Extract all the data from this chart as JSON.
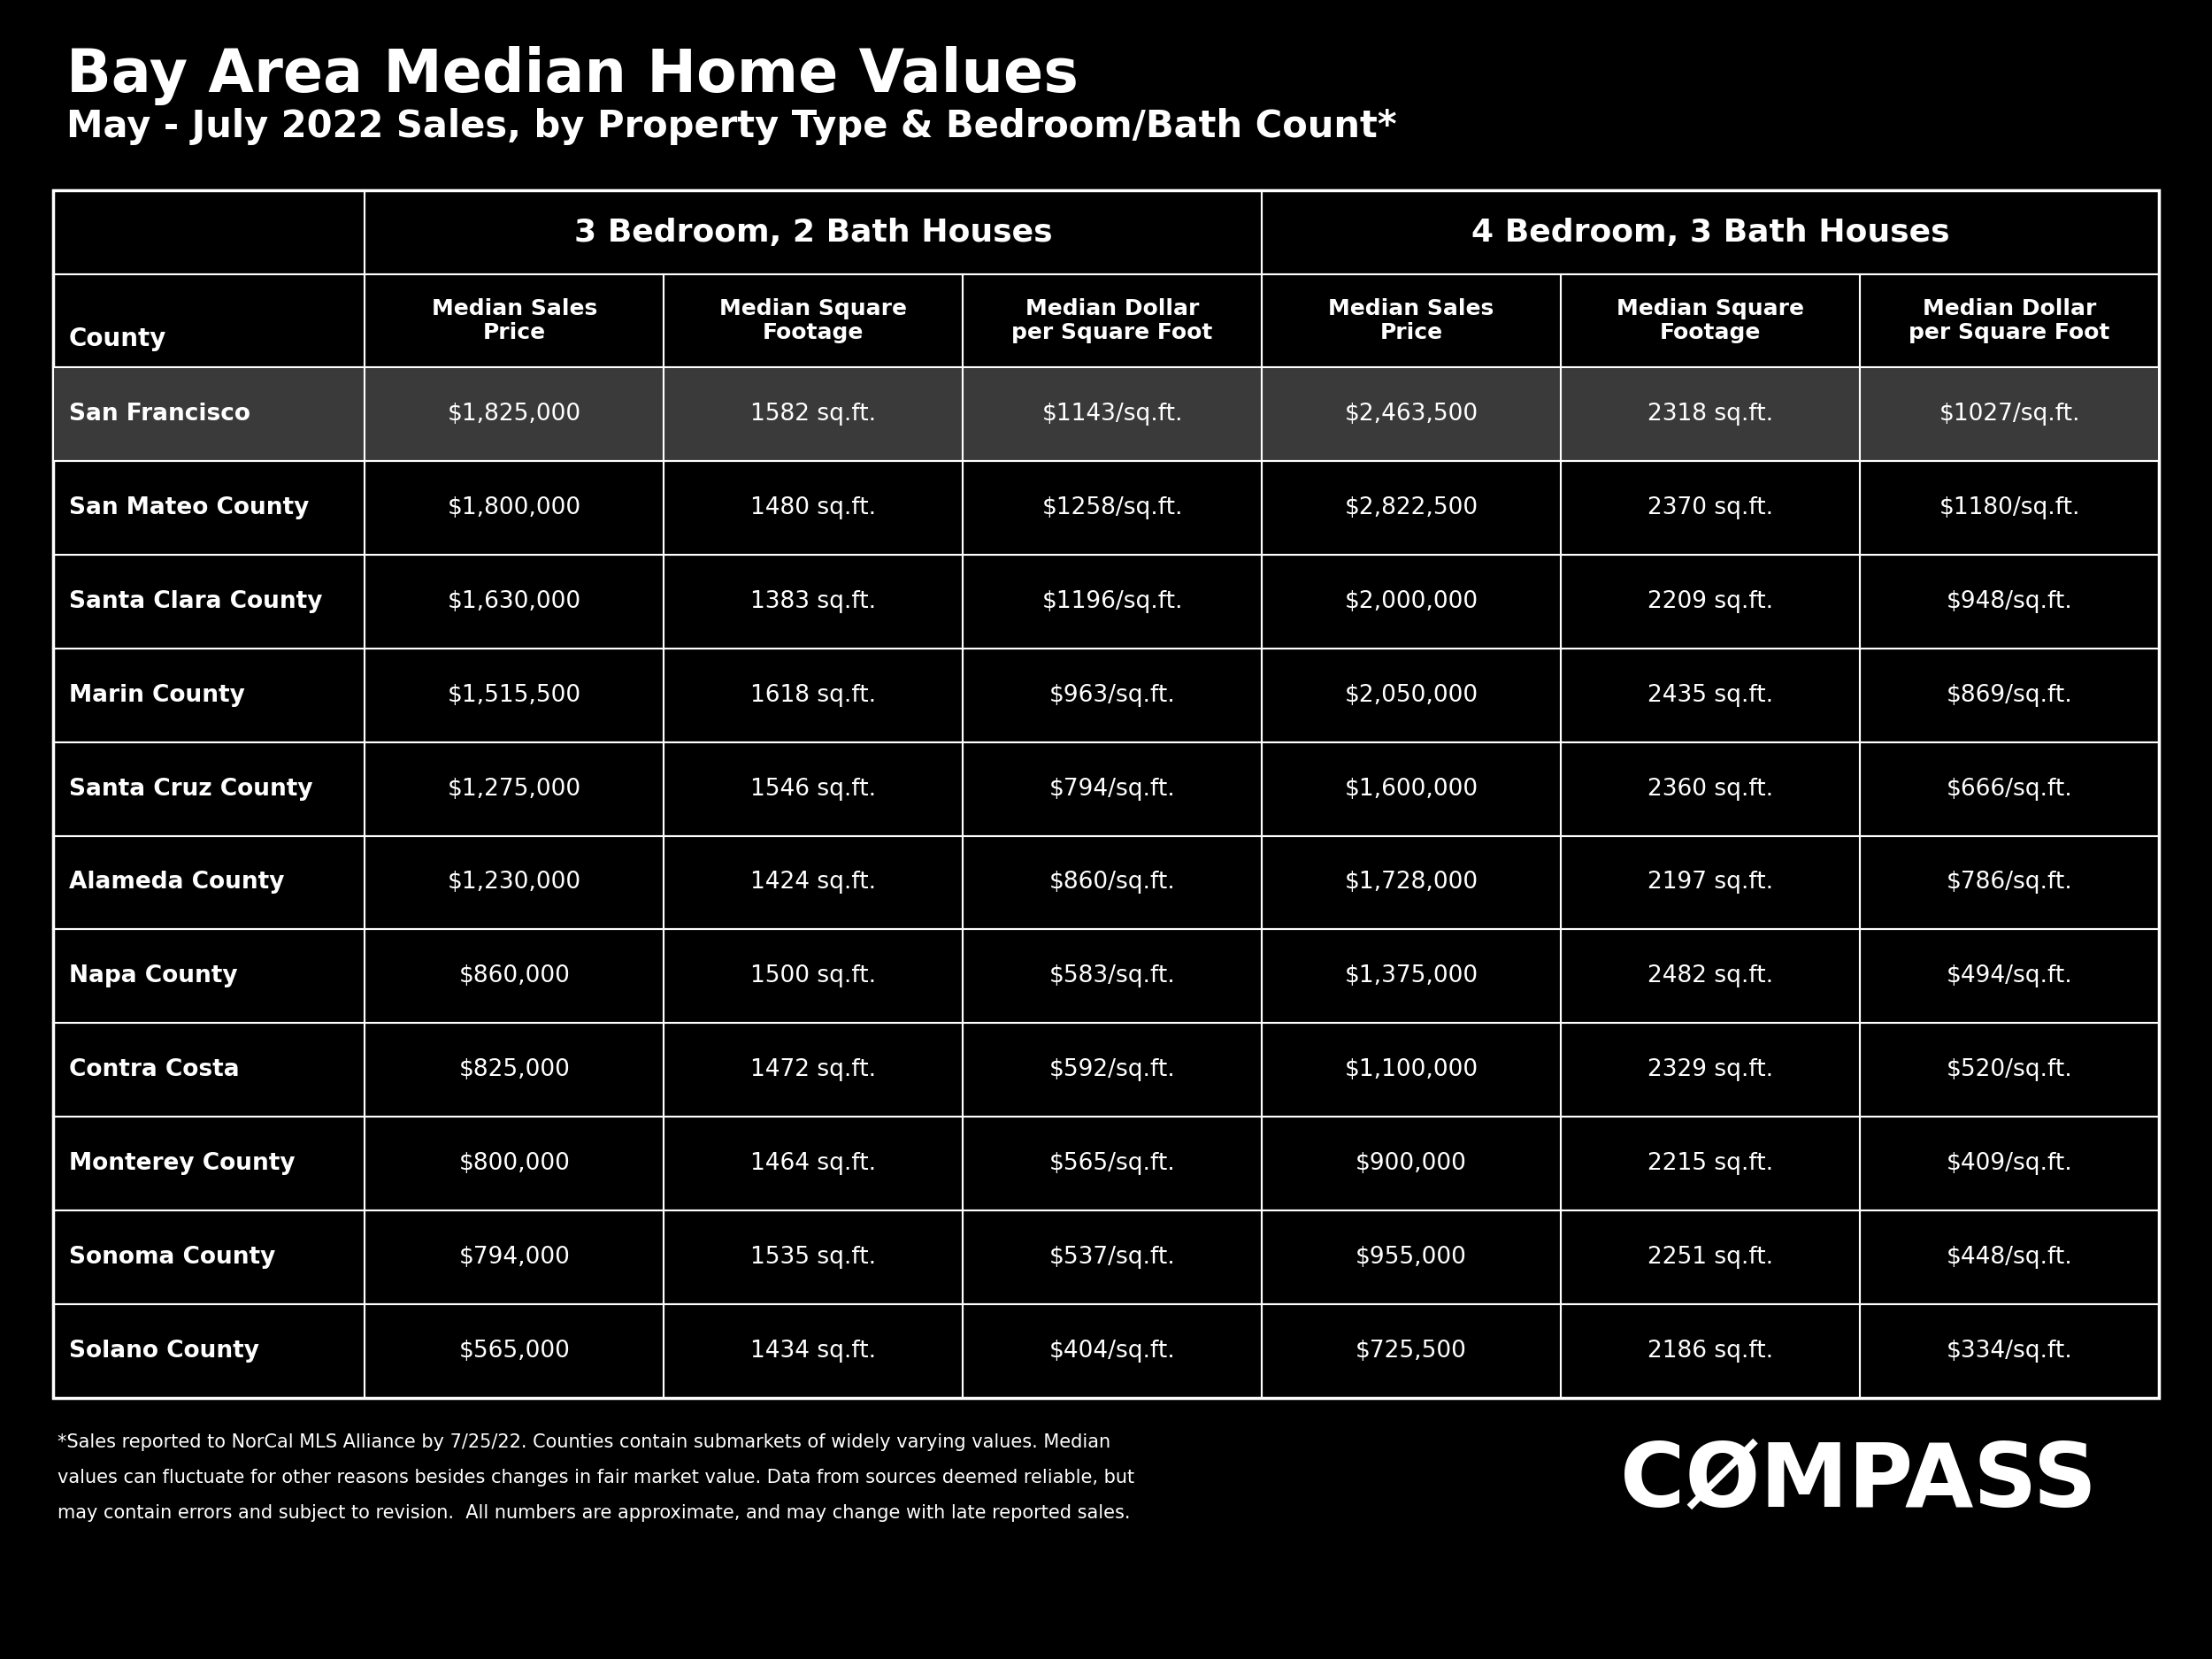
{
  "title_line1": "Bay Area Median Home Values",
  "title_line2": "May - July 2022 Sales, by Property Type & Bedroom/Bath Count*",
  "background_color": "#000000",
  "text_color": "#ffffff",
  "header1_3bed": "3 Bedroom, 2 Bath Houses",
  "header1_4bed": "4 Bedroom, 3 Bath Houses",
  "col_headers": [
    "County",
    "Median Sales\nPrice",
    "Median Square\nFootage",
    "Median Dollar\nper Square Foot",
    "Median Sales\nPrice",
    "Median Square\nFootage",
    "Median Dollar\nper Square Foot"
  ],
  "counties": [
    "San Francisco",
    "San Mateo County",
    "Santa Clara County",
    "Marin County",
    "Santa Cruz County",
    "Alameda County",
    "Napa County",
    "Contra Costa",
    "Monterey County",
    "Sonoma County",
    "Solano County"
  ],
  "bed3_sales_price": [
    "$1,825,000",
    "$1,800,000",
    "$1,630,000",
    "$1,515,500",
    "$1,275,000",
    "$1,230,000",
    "$860,000",
    "$825,000",
    "$800,000",
    "$794,000",
    "$565,000"
  ],
  "bed3_sqft": [
    "1582 sq.ft.",
    "1480 sq.ft.",
    "1383 sq.ft.",
    "1618 sq.ft.",
    "1546 sq.ft.",
    "1424 sq.ft.",
    "1500 sq.ft.",
    "1472 sq.ft.",
    "1464 sq.ft.",
    "1535 sq.ft.",
    "1434 sq.ft."
  ],
  "bed3_per_sqft": [
    "$1143/sq.ft.",
    "$1258/sq.ft.",
    "$1196/sq.ft.",
    "$963/sq.ft.",
    "$794/sq.ft.",
    "$860/sq.ft.",
    "$583/sq.ft.",
    "$592/sq.ft.",
    "$565/sq.ft.",
    "$537/sq.ft.",
    "$404/sq.ft."
  ],
  "bed4_sales_price": [
    "$2,463,500",
    "$2,822,500",
    "$2,000,000",
    "$2,050,000",
    "$1,600,000",
    "$1,728,000",
    "$1,375,000",
    "$1,100,000",
    "$900,000",
    "$955,000",
    "$725,500"
  ],
  "bed4_sqft": [
    "2318 sq.ft.",
    "2370 sq.ft.",
    "2209 sq.ft.",
    "2435 sq.ft.",
    "2360 sq.ft.",
    "2197 sq.ft.",
    "2482 sq.ft.",
    "2329 sq.ft.",
    "2215 sq.ft.",
    "2251 sq.ft.",
    "2186 sq.ft."
  ],
  "bed4_per_sqft": [
    "$1027/sq.ft.",
    "$1180/sq.ft.",
    "$948/sq.ft.",
    "$869/sq.ft.",
    "$666/sq.ft.",
    "$786/sq.ft.",
    "$494/sq.ft.",
    "$520/sq.ft.",
    "$409/sq.ft.",
    "$448/sq.ft.",
    "$334/sq.ft."
  ],
  "sf_row_bg": "#3a3a3a",
  "footnote_line1": "*Sales reported to NorCal MLS Alliance by 7/25/22. Counties contain submarkets of widely varying values. Median",
  "footnote_line2": "values can fluctuate for other reasons besides changes in fair market value. Data from sources deemed reliable, but",
  "footnote_line3": "may contain errors and subject to revision.  All numbers are approximate, and may change with late reported sales.",
  "compass_text": "CØMPASS"
}
